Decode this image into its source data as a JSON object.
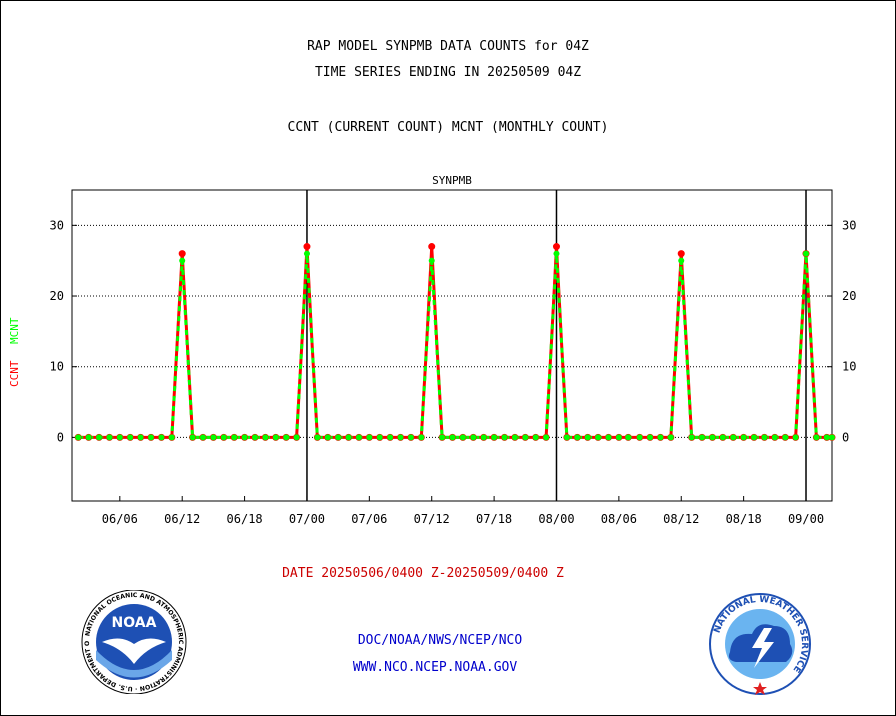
{
  "header": {
    "title_line1": "RAP MODEL SYNPMB DATA COUNTS for 04Z",
    "title_line2": "TIME SERIES ENDING IN 20250509 04Z",
    "subtitle": "CCNT (CURRENT COUNT) MCNT (MONTHLY COUNT)"
  },
  "footer": {
    "date_range": "DATE 20250506/0400 Z-20250509/0400 Z",
    "org_path": "DOC/NOAA/NWS/NCEP/NCO",
    "website": "WWW.NCO.NCEP.NOAA.GOV"
  },
  "logos": {
    "noaa_text": "NOAA",
    "noaa_ring_text": "NATIONAL OCEANIC AND ATMOSPHERIC ADMINISTRATION · U.S. DEPARTMENT OF COMMERCE",
    "nws_ring_text": "NATIONAL WEATHER SERVICE"
  },
  "colors": {
    "ccnt": "#ff0000",
    "mcnt": "#00ff00",
    "panel_title": "#0000cc",
    "footer_date": "#cc0000",
    "footer_links": "#0000cc"
  },
  "chart_data": {
    "type": "line",
    "panel_title": "SYNPMB",
    "ylabel_ccnt": "CCNT",
    "ylabel_mcnt": "MCNT",
    "ylim": [
      -9,
      35
    ],
    "yticks": [
      0,
      10,
      20,
      30
    ],
    "xlim_hours": [
      -2.6,
      70.5
    ],
    "x_tick_labels": [
      "06/06",
      "06/12",
      "06/18",
      "07/00",
      "07/06",
      "07/12",
      "07/18",
      "08/00",
      "08/06",
      "08/12",
      "08/18",
      "09/00"
    ],
    "x_tick_hours": [
      2,
      8,
      14,
      20,
      26,
      32,
      38,
      44,
      50,
      56,
      62,
      68
    ],
    "day_boundaries_hours": [
      20,
      44,
      68
    ],
    "grid": "horizontal dotted",
    "series": [
      {
        "name": "CCNT",
        "color": "#ff0000",
        "x_hours": [
          -2,
          -1,
          0,
          1,
          2,
          3,
          4,
          5,
          6,
          7,
          7.5,
          8,
          8.5,
          9,
          10,
          11,
          12,
          13,
          14,
          15,
          16,
          17,
          18,
          19,
          19.5,
          20,
          20.5,
          21,
          22,
          23,
          24,
          25,
          26,
          27,
          28,
          29,
          30,
          31,
          31.5,
          32,
          32.5,
          33,
          34,
          35,
          36,
          37,
          38,
          39,
          40,
          41,
          42,
          43,
          43.5,
          44,
          44.5,
          45,
          46,
          47,
          48,
          49,
          50,
          50.9,
          52,
          53,
          54,
          55,
          55.5,
          56,
          56.5,
          57,
          58,
          59,
          60,
          61,
          62,
          63,
          64,
          65,
          66,
          67,
          67.5,
          68,
          68.5,
          69,
          70,
          70.5
        ],
        "values": [
          0,
          0,
          0,
          0,
          0,
          0,
          0,
          0,
          0,
          0,
          13,
          26,
          13,
          0,
          0,
          0,
          0,
          0,
          0,
          0,
          0,
          0,
          0,
          0,
          13,
          27,
          13,
          0,
          0,
          0,
          0,
          0,
          0,
          0,
          0,
          0,
          0,
          0,
          13,
          27,
          13,
          0,
          0,
          0,
          0,
          0,
          0,
          0,
          0,
          0,
          0,
          0,
          13,
          27,
          13,
          0,
          0,
          0,
          0,
          0,
          0,
          0,
          0,
          0,
          0,
          0,
          13,
          26,
          13,
          0,
          0,
          0,
          0,
          0,
          0,
          0,
          0,
          0,
          0,
          0,
          13,
          26,
          13,
          0,
          0,
          0
        ]
      },
      {
        "name": "MCNT",
        "color": "#00ff00",
        "x_hours": [
          -2,
          -1,
          0,
          1,
          2,
          3,
          4,
          5,
          6,
          7,
          7.5,
          8,
          8.5,
          9,
          10,
          11,
          12,
          13,
          14,
          15,
          16,
          17,
          18,
          19,
          19.5,
          20,
          20.5,
          21,
          22,
          23,
          24,
          25,
          26,
          27,
          28,
          29,
          30,
          31,
          31.5,
          32,
          32.5,
          33,
          34,
          35,
          36,
          37,
          38,
          39,
          40,
          41,
          42,
          43,
          43.5,
          44,
          44.5,
          45,
          46,
          47,
          48,
          49,
          50,
          50.9,
          52,
          53,
          54,
          55,
          55.5,
          56,
          56.5,
          57,
          58,
          59,
          60,
          61,
          62,
          63,
          64,
          65,
          66,
          67,
          67.5,
          68,
          68.5,
          69,
          70,
          70.5
        ],
        "values": [
          0,
          0,
          0,
          0,
          0,
          0,
          0,
          0,
          0,
          0,
          12.5,
          25,
          12.5,
          0,
          0,
          0,
          0,
          0,
          0,
          0,
          0,
          0,
          0,
          0,
          13,
          26,
          13,
          0,
          0,
          0,
          0,
          0,
          0,
          0,
          0,
          0,
          0,
          0,
          12.5,
          25,
          12.5,
          0,
          0,
          0,
          0,
          0,
          0,
          0,
          0,
          0,
          0,
          0,
          13,
          26,
          13,
          0,
          0,
          0,
          0,
          0,
          0,
          0,
          0,
          0,
          0,
          0,
          12.5,
          25,
          12.5,
          0,
          0,
          0,
          0,
          0,
          0,
          0,
          0,
          0,
          0,
          0,
          13,
          26,
          13,
          0,
          0,
          0
        ]
      }
    ]
  }
}
